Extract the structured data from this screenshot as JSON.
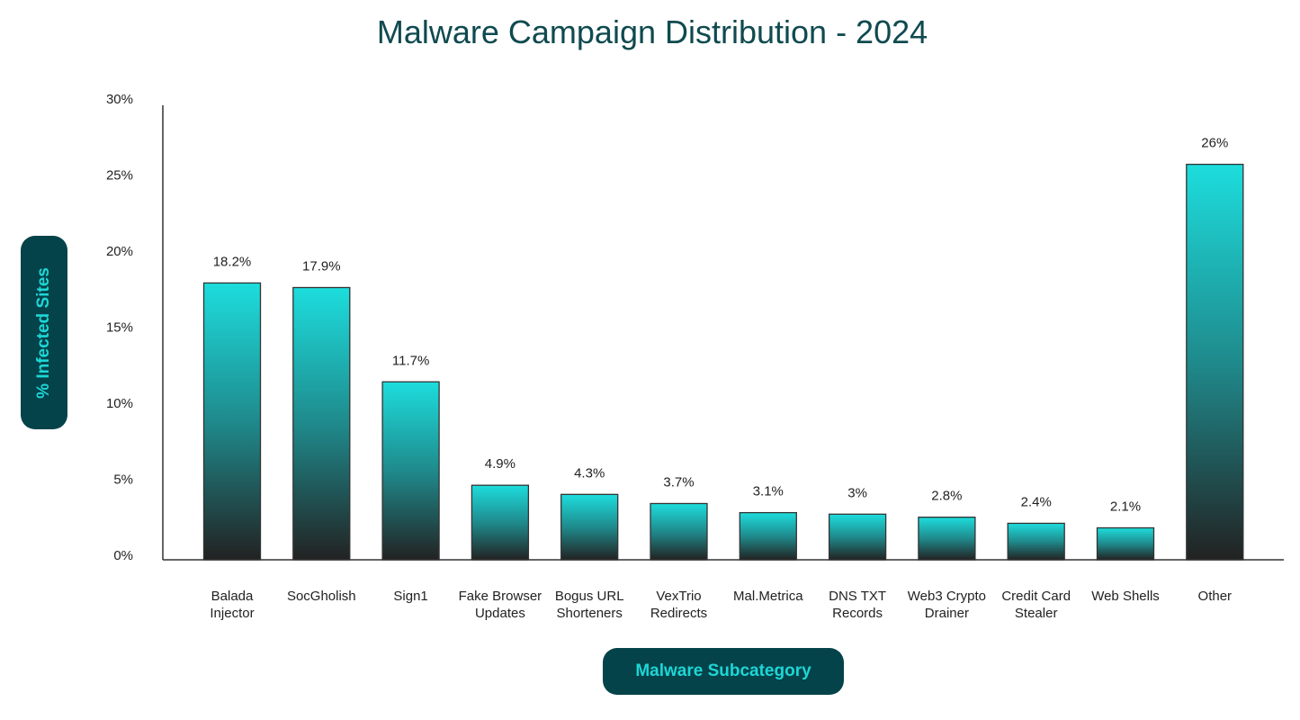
{
  "chart_data": {
    "type": "bar",
    "title": "Malware Campaign Distribution - 2024",
    "xlabel": "Malware Subcategory",
    "ylabel": "% Infected Sites",
    "ylim": [
      0,
      30
    ],
    "yticks": [
      "0%",
      "5%",
      "10%",
      "15%",
      "20%",
      "25%",
      "30%"
    ],
    "grid": false,
    "categories": [
      [
        "Balada",
        "Injector"
      ],
      [
        "SocGholish"
      ],
      [
        "Sign1"
      ],
      [
        "Fake Browser",
        "Updates"
      ],
      [
        "Bogus URL",
        "Shorteners"
      ],
      [
        "VexTrio",
        "Redirects"
      ],
      [
        "Mal.Metrica"
      ],
      [
        "DNS TXT",
        "Records"
      ],
      [
        "Web3 Crypto",
        "Drainer"
      ],
      [
        "Credit Card",
        "Stealer"
      ],
      [
        "Web Shells"
      ],
      [
        "Other"
      ]
    ],
    "values": [
      18.2,
      17.9,
      11.7,
      4.9,
      4.3,
      3.7,
      3.1,
      3.0,
      2.8,
      2.4,
      2.1,
      26
    ],
    "data_labels": [
      "18.2%",
      "17.9%",
      "11.7%",
      "4.9%",
      "4.3%",
      "3.7%",
      "3.1%",
      "3%",
      "2.8%",
      "2.4%",
      "2.1%",
      "26%"
    ],
    "colors": {
      "bar_top": "#1ddddd",
      "bar_mid": "#1f8a8c",
      "bar_bottom": "#222222",
      "title": "#0f4a4f",
      "pill": "#04434a",
      "pill_text": "#1ed6d6"
    }
  }
}
